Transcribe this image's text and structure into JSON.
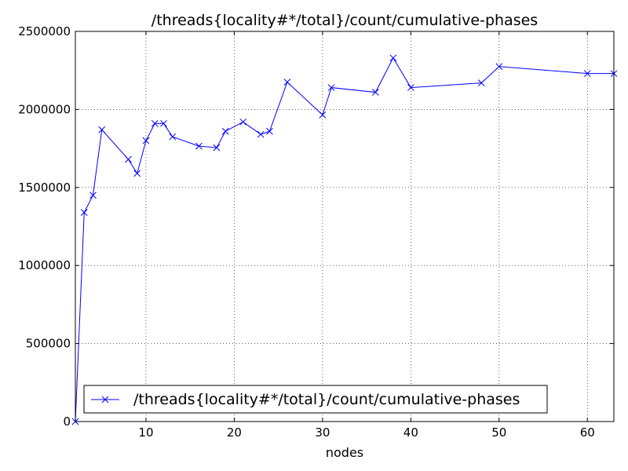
{
  "chart_data": {
    "type": "line",
    "title": "/threads{locality#*/total}/count/cumulative-phases",
    "xlabel": "nodes",
    "ylabel": "",
    "xlim": [
      2,
      63
    ],
    "ylim": [
      0,
      2500000
    ],
    "x_ticks": [
      10,
      20,
      30,
      40,
      50,
      60
    ],
    "y_ticks": [
      0,
      500000,
      1000000,
      1500000,
      2000000,
      2500000
    ],
    "x_tick_labels": [
      "10",
      "20",
      "30",
      "40",
      "50",
      "60"
    ],
    "y_tick_labels": [
      "0",
      "500000",
      "1000000",
      "1500000",
      "2000000",
      "2500000"
    ],
    "grid": true,
    "legend_position": "lower-left",
    "series": [
      {
        "name": "/threads{locality#*/total}/count/cumulative-phases",
        "color": "#0000ff",
        "marker": "x",
        "x": [
          2,
          3,
          4,
          5,
          8,
          9,
          10,
          11,
          12,
          13,
          16,
          18,
          19,
          21,
          23,
          24,
          26,
          30,
          31,
          36,
          38,
          40,
          48,
          50,
          60,
          63
        ],
        "y": [
          0,
          1340000,
          1450000,
          1870000,
          1680000,
          1590000,
          1800000,
          1910000,
          1910000,
          1825000,
          1765000,
          1755000,
          1860000,
          1920000,
          1840000,
          1860000,
          2175000,
          1965000,
          2140000,
          2110000,
          2330000,
          2140000,
          2170000,
          2275000,
          2230000,
          2230000
        ]
      }
    ]
  }
}
